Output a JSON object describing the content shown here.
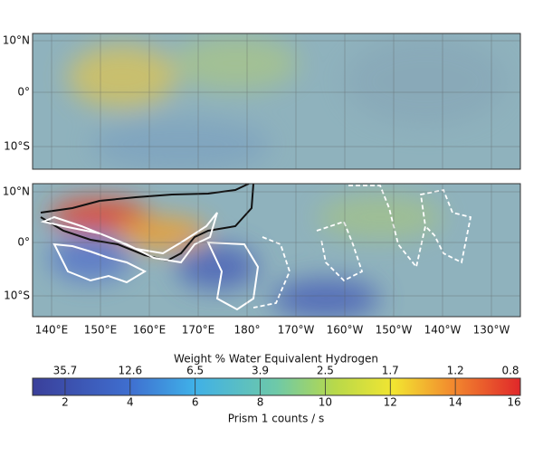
{
  "panels": [
    {
      "lat_labels": [
        "10°N",
        "0°",
        "10°S"
      ]
    },
    {
      "lat_labels": [
        "10°N",
        "0°",
        "10°S"
      ]
    }
  ],
  "lon_labels": [
    "140°E",
    "150°E",
    "160°E",
    "170°E",
    "180°",
    "170°W",
    "160°W",
    "150°W",
    "140°W",
    "130°W"
  ],
  "colorbar": {
    "title": "Weight % Water Equivalent Hydrogen",
    "label": "Prism 1 counts / s",
    "range": [
      1,
      16
    ],
    "ticks": [
      2,
      4,
      6,
      8,
      10,
      12,
      14,
      16
    ],
    "top_labels": [
      35.7,
      12.6,
      6.5,
      3.9,
      2.5,
      1.7,
      1.2,
      0.8
    ]
  }
}
